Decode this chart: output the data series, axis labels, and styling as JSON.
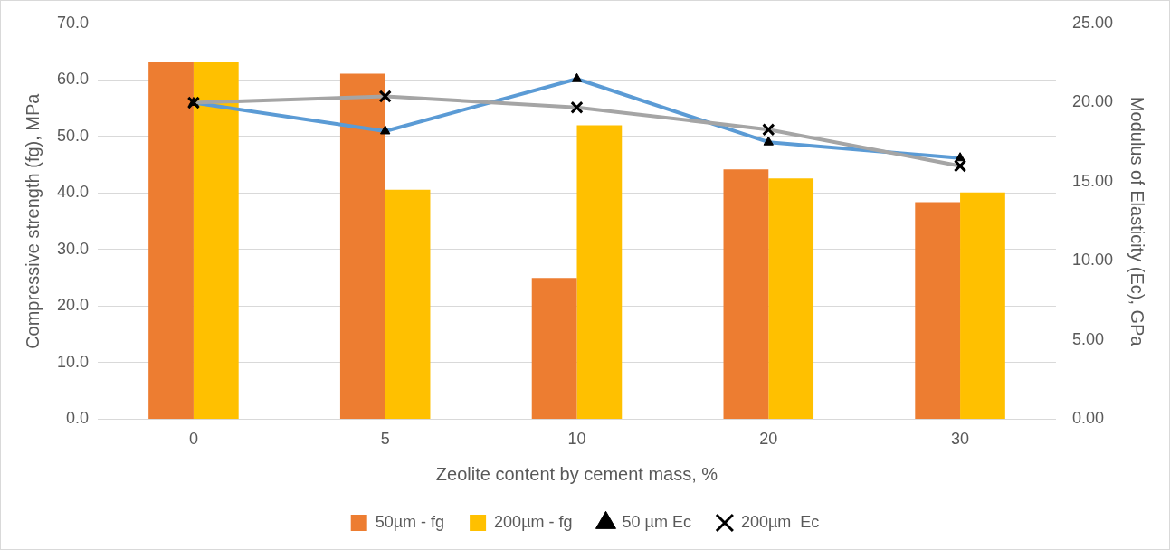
{
  "chart_data": {
    "type": "bar",
    "xlabel": "Zeolite content by cement mass, %",
    "ylabel": "Compressive strength (fg), MPa",
    "y2label": "Modulus of Elasticity (Ec), GPa",
    "categories": [
      "0",
      "5",
      "10",
      "20",
      "30"
    ],
    "series": [
      {
        "name": "50µm - fg",
        "color": "#ed7d31",
        "values": [
          63.1,
          61.1,
          25.0,
          44.2,
          38.4
        ]
      },
      {
        "name": "200µm - fg",
        "color": "#ffc000",
        "values": [
          63.1,
          40.6,
          52.0,
          42.6,
          40.1
        ]
      },
      {
        "name": "50 µm Ec",
        "type": "line",
        "axis": "y2",
        "color": "#5b9bd5",
        "marker": "triangle",
        "values": [
          20.0,
          18.2,
          21.5,
          17.5,
          16.5
        ]
      },
      {
        "name": "200µm  Ec",
        "type": "line",
        "axis": "y2",
        "color": "#a5a5a5",
        "marker": "cross",
        "values": [
          20.0,
          20.4,
          19.7,
          18.3,
          16.0
        ]
      }
    ],
    "ylim": [
      0,
      70
    ],
    "yticks": [
      {
        "value": 0,
        "label": "0.0"
      },
      {
        "value": 10,
        "label": "10.0"
      },
      {
        "value": 20,
        "label": "20.0"
      },
      {
        "value": 30,
        "label": "30.0"
      },
      {
        "value": 40,
        "label": "40.0"
      },
      {
        "value": 50,
        "label": "50.0"
      },
      {
        "value": 60,
        "label": "60.0"
      },
      {
        "value": 70,
        "label": "70.0"
      }
    ],
    "y2lim": [
      0,
      25
    ],
    "y2ticks": [
      {
        "value": 0,
        "label": "0.00"
      },
      {
        "value": 5,
        "label": "5.00"
      },
      {
        "value": 10,
        "label": "10.00"
      },
      {
        "value": 15,
        "label": "15.00"
      },
      {
        "value": 20,
        "label": "20.00"
      },
      {
        "value": 25,
        "label": "25.00"
      }
    ],
    "grid": "y",
    "legend": "bottom"
  }
}
